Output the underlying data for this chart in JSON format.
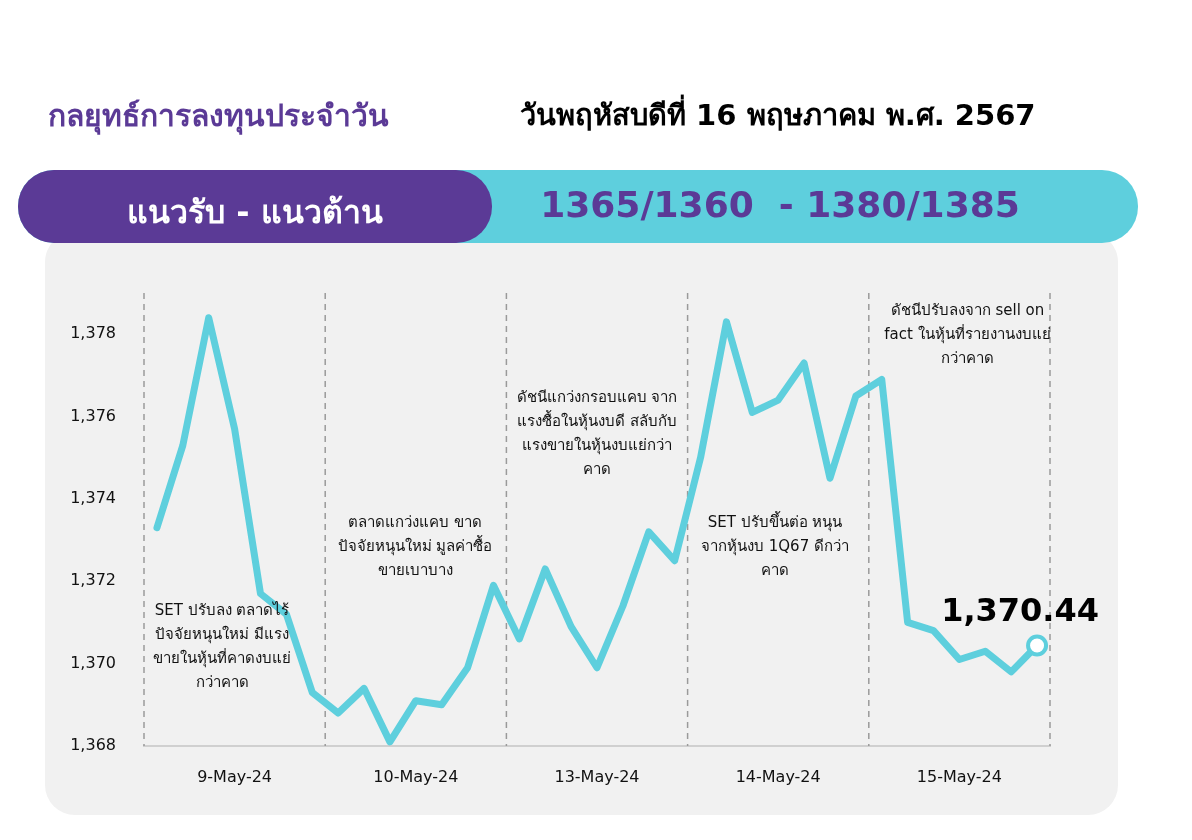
{
  "chart_data": {
    "type": "line",
    "title": "กลยุทธ์การลงทุนประจำวัน",
    "subtitle": "วันพฤหัสบดีที่ 16 พฤษภาคม พ.ศ. 2567",
    "annotations": [
      "แนวรับ - แนวต้าน",
      "1365/1360  - 1380/1385",
      "SET ปรับลง ตลาดไร้ปัจจัยหนุนใหม่ มีแรงขายในหุ้นที่คาดงบแย่กว่าคาด",
      "ตลาดแกว่งแคบ ขาดปัจจัยหนุนใหม่ มูลค่าซื้อขายเบาบาง",
      "ดัชนีแกว่งกรอบแคบ จากแรงซื้อในหุ้นงบดี สลับกับแรงขายในหุ้นงบแย่กว่าคาด",
      "SET ปรับขึ้นต่อ หนุนจากหุ้นงบ 1Q67 ดีกว่าคาด",
      "ดัชนีปรับลงจาก sell on fact ในหุ้นที่รายงานงบแย่กว่าคาด"
    ],
    "categories": [
      null,
      null,
      null,
      "9-May-24",
      null,
      null,
      null,
      null,
      null,
      null,
      "10-May-24",
      null,
      null,
      null,
      null,
      null,
      null,
      "13-May-24",
      null,
      null,
      null,
      null,
      null,
      null,
      "14-May-24",
      null,
      null,
      null,
      null,
      null,
      null,
      "15-May-24",
      null,
      null,
      null
    ],
    "ylim": [
      1368,
      1379
    ],
    "yticks": [
      {
        "value": 1368,
        "label": "1,368"
      },
      {
        "value": 1370,
        "label": "1,370"
      },
      {
        "value": 1372,
        "label": "1,372"
      },
      {
        "value": 1374,
        "label": "1,374"
      },
      {
        "value": 1376,
        "label": "1,376"
      },
      {
        "value": 1378,
        "label": "1,378"
      }
    ],
    "grid": "x",
    "legend": false,
    "marker": "none",
    "line_style": "solid",
    "series": [
      {
        "color": "#5ecfdd",
        "values": [
          1373.3,
          1375.3,
          1378.4,
          1375.7,
          1371.7,
          1371.2,
          1369.3,
          1368.8,
          1369.4,
          1368.1,
          1369.1,
          1369.0,
          1369.9,
          1371.9,
          1370.6,
          1372.3,
          1370.9,
          1369.9,
          1371.4,
          1373.2,
          1372.5,
          1375.0,
          1378.3,
          1376.1,
          1376.4,
          1377.3,
          1374.5,
          1376.5,
          1376.9,
          1371.0,
          1370.8,
          1370.1,
          1370.3,
          1369.8,
          1370.44
        ],
        "value_labels": [
          null,
          null,
          null,
          null,
          null,
          null,
          null,
          null,
          null,
          null,
          null,
          null,
          null,
          null,
          null,
          null,
          null,
          null,
          null,
          null,
          null,
          null,
          null,
          null,
          null,
          null,
          null,
          null,
          null,
          null,
          null,
          null,
          null,
          null,
          "1,370.44"
        ]
      }
    ]
  }
}
